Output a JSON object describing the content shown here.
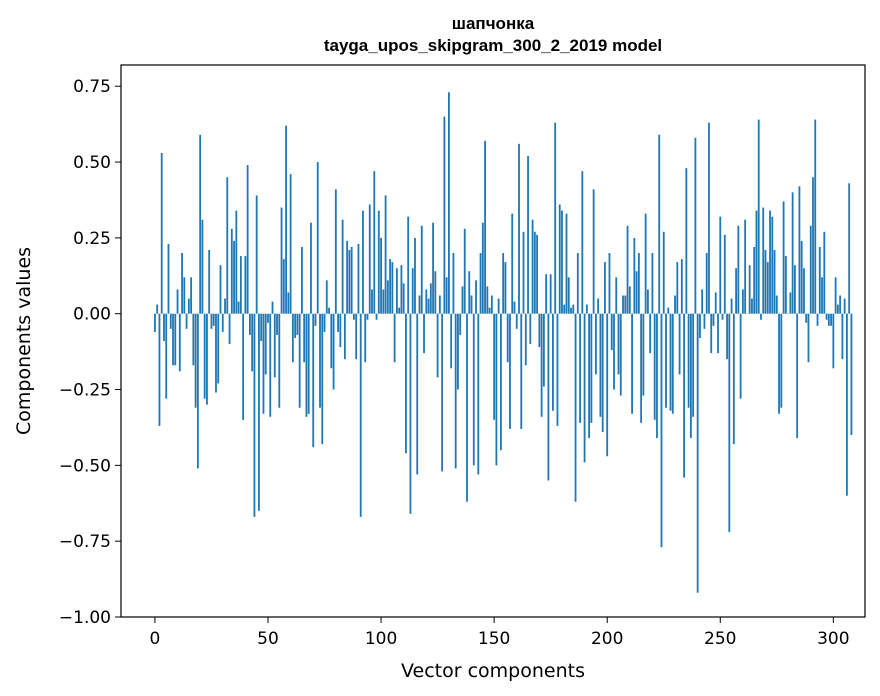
{
  "chart_data": {
    "type": "bar",
    "title": "шапчонка",
    "subtitle": "tayga_upos_skipgram_300_2_2019 model",
    "xlabel": "Vector components",
    "ylabel": "Components values",
    "xlim": [
      -15,
      314
    ],
    "ylim": [
      -1.0,
      0.82
    ],
    "xticks": [
      0,
      50,
      100,
      150,
      200,
      250,
      300
    ],
    "xtick_labels": [
      "0",
      "50",
      "100",
      "150",
      "200",
      "250",
      "300"
    ],
    "yticks": [
      -1.0,
      -0.75,
      -0.5,
      -0.25,
      0.0,
      0.25,
      0.5,
      0.75
    ],
    "ytick_labels": [
      "−1.00",
      "−0.75",
      "−0.50",
      "−0.25",
      "0.00",
      "0.25",
      "0.50",
      "0.75"
    ],
    "grid": false,
    "bar_color": "#1f77b4",
    "values": [
      -0.06,
      0.03,
      -0.37,
      0.53,
      -0.09,
      -0.28,
      0.23,
      -0.05,
      -0.17,
      -0.17,
      0.08,
      -0.19,
      0.2,
      0.12,
      -0.05,
      0.05,
      0.12,
      -0.17,
      -0.31,
      -0.51,
      0.59,
      0.31,
      -0.28,
      -0.3,
      0.21,
      -0.05,
      -0.04,
      -0.26,
      -0.23,
      0.16,
      -0.06,
      0.05,
      0.45,
      -0.1,
      0.28,
      0.24,
      0.34,
      0.04,
      0.19,
      -0.35,
      0.19,
      0.49,
      -0.07,
      -0.19,
      -0.67,
      0.39,
      -0.65,
      -0.09,
      -0.33,
      -0.2,
      -0.03,
      -0.34,
      0.04,
      -0.21,
      -0.07,
      -0.31,
      0.35,
      0.18,
      0.62,
      0.07,
      0.46,
      -0.16,
      -0.08,
      -0.07,
      -0.31,
      0.22,
      -0.16,
      -0.34,
      -0.33,
      0.3,
      -0.44,
      -0.04,
      0.5,
      -0.31,
      -0.43,
      -0.06,
      0.11,
      0.02,
      -0.18,
      -0.25,
      0.41,
      -0.06,
      -0.11,
      0.31,
      -0.15,
      0.24,
      0.21,
      0.22,
      -0.02,
      -0.15,
      0.23,
      -0.67,
      0.34,
      -0.16,
      -0.02,
      0.36,
      0.08,
      0.47,
      -0.02,
      0.34,
      0.25,
      0.08,
      0.39,
      0.11,
      0.18,
      0.17,
      -0.16,
      0.15,
      0.02,
      0.16,
      0.1,
      -0.46,
      0.32,
      -0.66,
      0.15,
      0.25,
      -0.53,
      0.06,
      0.29,
      -0.13,
      0.08,
      0.05,
      0.1,
      0.3,
      0.14,
      -0.21,
      0.06,
      -0.52,
      0.65,
      0.12,
      0.73,
      -0.18,
      0.2,
      -0.51,
      -0.25,
      -0.07,
      0.09,
      0.28,
      -0.62,
      0.14,
      0.06,
      -0.5,
      0.11,
      -0.53,
      0.2,
      0.3,
      0.57,
      0.09,
      0.02,
      0.06,
      -0.35,
      -0.5,
      0.05,
      -0.45,
      0.2,
      0.17,
      -0.16,
      -0.38,
      0.33,
      0.04,
      -0.05,
      0.56,
      -0.38,
      0.27,
      -0.17,
      0.52,
      -0.1,
      0.31,
      0.27,
      0.26,
      -0.11,
      -0.34,
      -0.24,
      0.13,
      -0.55,
      0.13,
      -0.32,
      0.63,
      -0.37,
      0.36,
      0.34,
      0.03,
      0.33,
      0.12,
      0.02,
      0.03,
      -0.62,
      0.2,
      -0.36,
      0.47,
      -0.49,
      0.03,
      -0.41,
      -0.36,
      0.41,
      -0.2,
      0.05,
      -0.34,
      -0.39,
      0.17,
      -0.47,
      0.2,
      -0.12,
      -0.25,
      0.12,
      -0.2,
      -0.27,
      0.06,
      0.06,
      0.29,
      0.09,
      -0.33,
      0.25,
      0.14,
      0.2,
      -0.36,
      -0.27,
      0.33,
      0.08,
      -0.13,
      0.2,
      -0.35,
      -0.41,
      0.59,
      -0.77,
      0.27,
      -0.31,
      0.02,
      -0.32,
      -0.33,
      0.06,
      0.17,
      -0.2,
      0.18,
      -0.54,
      0.48,
      -0.31,
      -0.41,
      -0.34,
      0.58,
      -0.92,
      -0.08,
      0.08,
      -0.05,
      0.2,
      0.63,
      -0.13,
      -0.04,
      0.07,
      -0.13,
      0.32,
      -0.02,
      0.26,
      -0.15,
      -0.72,
      0.05,
      -0.43,
      0.15,
      0.29,
      -0.28,
      0.08,
      0.31,
      0.0,
      0.16,
      0.05,
      0.22,
      0.34,
      0.64,
      -0.02,
      0.35,
      0.21,
      0.17,
      0.34,
      0.32,
      0.21,
      0.06,
      -0.33,
      -0.31,
      0.37,
      0.19,
      0.0,
      0.07,
      0.4,
      0.16,
      -0.41,
      0.42,
      0.24,
      0.15,
      -0.03,
      -0.16,
      0.29,
      0.45,
      0.64,
      -0.04,
      0.22,
      0.12,
      0.27,
      -0.02,
      -0.04,
      -0.04,
      -0.18,
      0.12,
      0.03,
      0.06,
      -0.15,
      0.05,
      -0.6,
      0.43,
      -0.4
    ]
  }
}
